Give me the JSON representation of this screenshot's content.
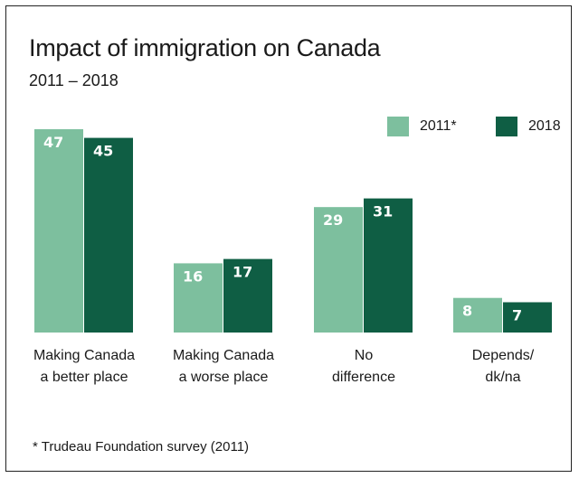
{
  "chart_data": {
    "type": "bar",
    "title": "Impact of immigration on Canada",
    "subtitle": "2011 – 2018",
    "categories": [
      [
        "Making Canada",
        "a better place"
      ],
      [
        "Making Canada",
        "a worse place"
      ],
      [
        "No",
        "difference"
      ],
      [
        "Depends/",
        "dk/na"
      ]
    ],
    "series": [
      {
        "name": "2011*",
        "values": [
          47,
          16,
          29,
          8
        ],
        "color": "#7dbf9e"
      },
      {
        "name": "2018",
        "values": [
          45,
          17,
          31,
          7
        ],
        "color": "#0f5e44"
      }
    ],
    "ylim": [
      0,
      47
    ],
    "grid": false,
    "legend_position": "top-right",
    "footnote": "* Trudeau Foundation survey (2011)"
  }
}
